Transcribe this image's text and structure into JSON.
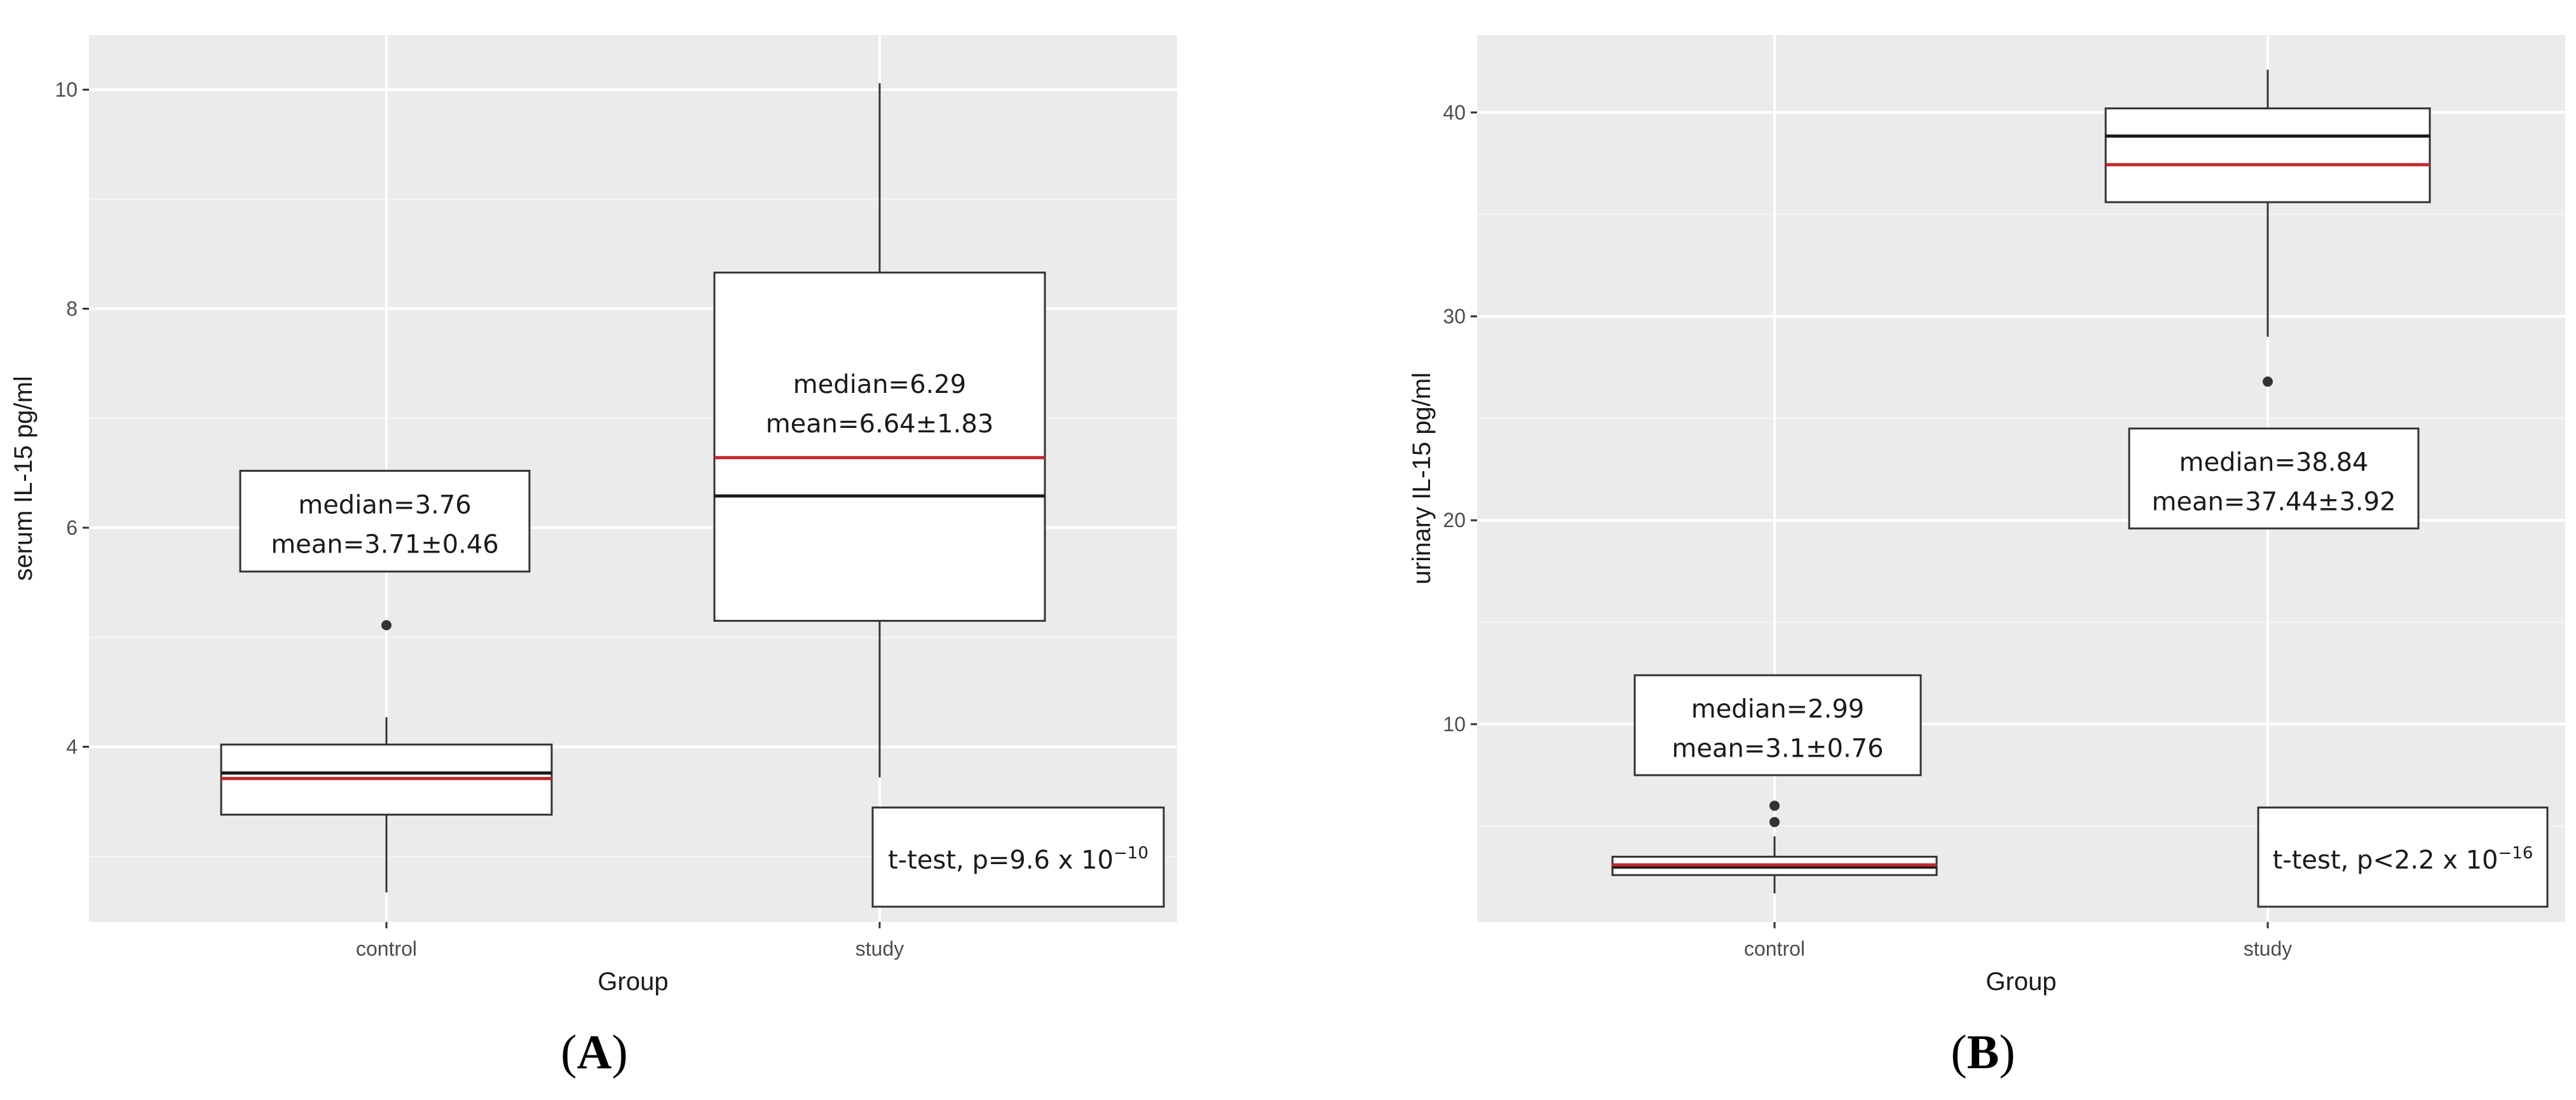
{
  "chart_data": [
    {
      "type": "box",
      "panel_label": "A",
      "title": "",
      "xlabel": "Group",
      "ylabel": "serum IL-15 pg/ml",
      "ylim": [
        2.4,
        10.5
      ],
      "yticks": [
        4,
        6,
        8,
        10
      ],
      "ytick_labels": [
        "4",
        "6",
        "8",
        "10"
      ],
      "grid": true,
      "categories": [
        "control",
        "study"
      ],
      "boxes": [
        {
          "category": "control",
          "q1": 3.38,
          "median": 3.76,
          "q3": 4.02,
          "whisker_low": 2.67,
          "whisker_high": 4.27,
          "mean": 3.71,
          "outliers": [
            5.11
          ]
        },
        {
          "category": "study",
          "q1": 5.15,
          "median": 6.29,
          "q3": 8.33,
          "whisker_low": 3.72,
          "whisker_high": 10.06,
          "mean": 6.64,
          "outliers": []
        }
      ],
      "annotations": [
        {
          "lines": [
            "median=3.76",
            "mean=3.71±0.46"
          ],
          "x": 1,
          "y_top": 6.52,
          "y_bottom": 5.6
        },
        {
          "lines": [
            "median=6.29",
            "mean=6.64±1.83"
          ],
          "x": 2,
          "y_top": null,
          "y_bottom": null
        }
      ],
      "test_label": {
        "prefix": "t-test, p=9.6 x 10",
        "exponent": "−10"
      },
      "mean_color": "#c0282d",
      "median_color": "#1a1a1a"
    },
    {
      "type": "box",
      "panel_label": "B",
      "title": "",
      "xlabel": "Group",
      "ylabel": "urinary IL-15 pg/ml",
      "ylim": [
        0.3,
        43.8
      ],
      "yticks": [
        10,
        20,
        30,
        40
      ],
      "ytick_labels": [
        "10",
        "20",
        "30",
        "40"
      ],
      "grid": true,
      "categories": [
        "control",
        "study"
      ],
      "boxes": [
        {
          "category": "control",
          "q1": 2.6,
          "median": 2.99,
          "q3": 3.5,
          "whisker_low": 1.7,
          "whisker_high": 4.5,
          "mean": 3.1,
          "outliers": [
            5.2,
            6.0
          ]
        },
        {
          "category": "study",
          "q1": 35.6,
          "median": 38.84,
          "q3": 40.2,
          "whisker_low": 29.0,
          "whisker_high": 42.1,
          "mean": 37.44,
          "outliers": [
            26.8
          ]
        }
      ],
      "annotations": [
        {
          "lines": [
            "median=2.99",
            "mean=3.1±0.76"
          ],
          "x": 1,
          "y_top": 12.4,
          "y_bottom": 7.5
        },
        {
          "lines": [
            "median=38.84",
            "mean=37.44±3.92"
          ],
          "x": 2,
          "y_top": 24.5,
          "y_bottom": 19.6
        }
      ],
      "test_label": {
        "prefix": "t-test, p<2.2 x 10",
        "exponent": "−16"
      },
      "mean_color": "#c0282d",
      "median_color": "#1a1a1a"
    }
  ]
}
